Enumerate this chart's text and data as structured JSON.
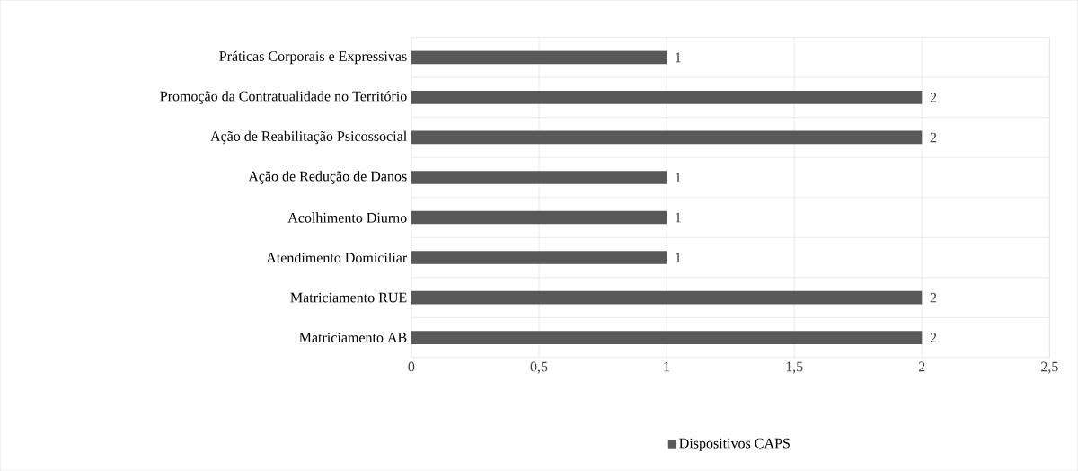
{
  "chart_data": {
    "type": "bar",
    "orientation": "horizontal",
    "categories": [
      "Práticas Corporais e Expressivas",
      "Promoção da Contratualidade no Território",
      "Ação de Reabilitação Psicossocial",
      "Ação de Redução de Danos",
      "Acolhimento Diurno",
      "Atendimento Domiciliar",
      "Matriciamento RUE",
      "Matriciamento AB"
    ],
    "series": [
      {
        "name": "Dispositivos CAPS",
        "color": "#595959",
        "values": [
          1,
          2,
          2,
          1,
          1,
          1,
          2,
          2
        ],
        "value_labels": [
          "1",
          "2",
          "2",
          "1",
          "1",
          "1",
          "2",
          "2"
        ]
      }
    ],
    "xlim": [
      0,
      2.5
    ],
    "xticks": [
      0,
      {
        "value": 0.5,
        "label": "0,5"
      },
      1,
      {
        "value": 1.5,
        "label": "1,5"
      },
      2,
      {
        "value": 2.5,
        "label": "2,5"
      }
    ],
    "grid": true,
    "legend": "bottom"
  }
}
